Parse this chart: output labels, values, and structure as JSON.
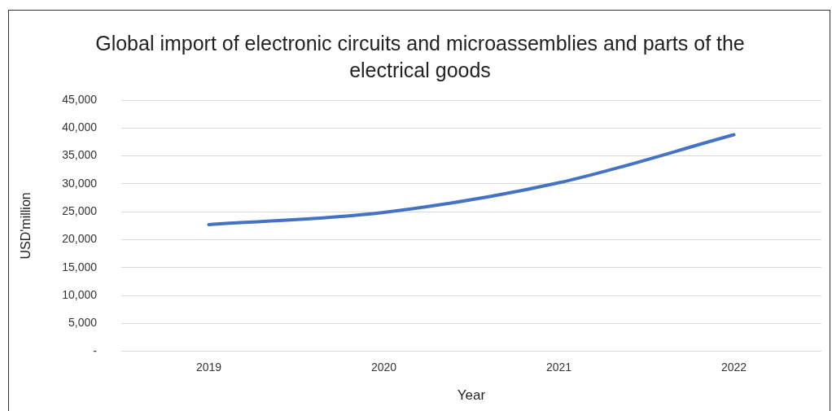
{
  "chart_data": {
    "type": "line",
    "title": "Global import of electronic circuits and microassemblies and parts of the electrical goods",
    "xlabel": "Year",
    "ylabel": "USD'million",
    "categories": [
      "2019",
      "2020",
      "2021",
      "2022"
    ],
    "series": [
      {
        "color": "#4472c4",
        "values": [
          22700,
          24900,
          30200,
          38800
        ]
      }
    ],
    "ylim": [
      0,
      45000
    ],
    "yticks": [
      {
        "value": 0,
        "label": "-"
      },
      {
        "value": 5000,
        "label": "5,000"
      },
      {
        "value": 10000,
        "label": "10,000"
      },
      {
        "value": 15000,
        "label": "15,000"
      },
      {
        "value": 20000,
        "label": "20,000"
      },
      {
        "value": 25000,
        "label": "25,000"
      },
      {
        "value": 30000,
        "label": "30,000"
      },
      {
        "value": 35000,
        "label": "35,000"
      },
      {
        "value": 40000,
        "label": "40,000"
      },
      {
        "value": 45000,
        "label": "45,000"
      }
    ],
    "grid": "y",
    "legend": false,
    "marker": "none",
    "line_style": "solid"
  }
}
